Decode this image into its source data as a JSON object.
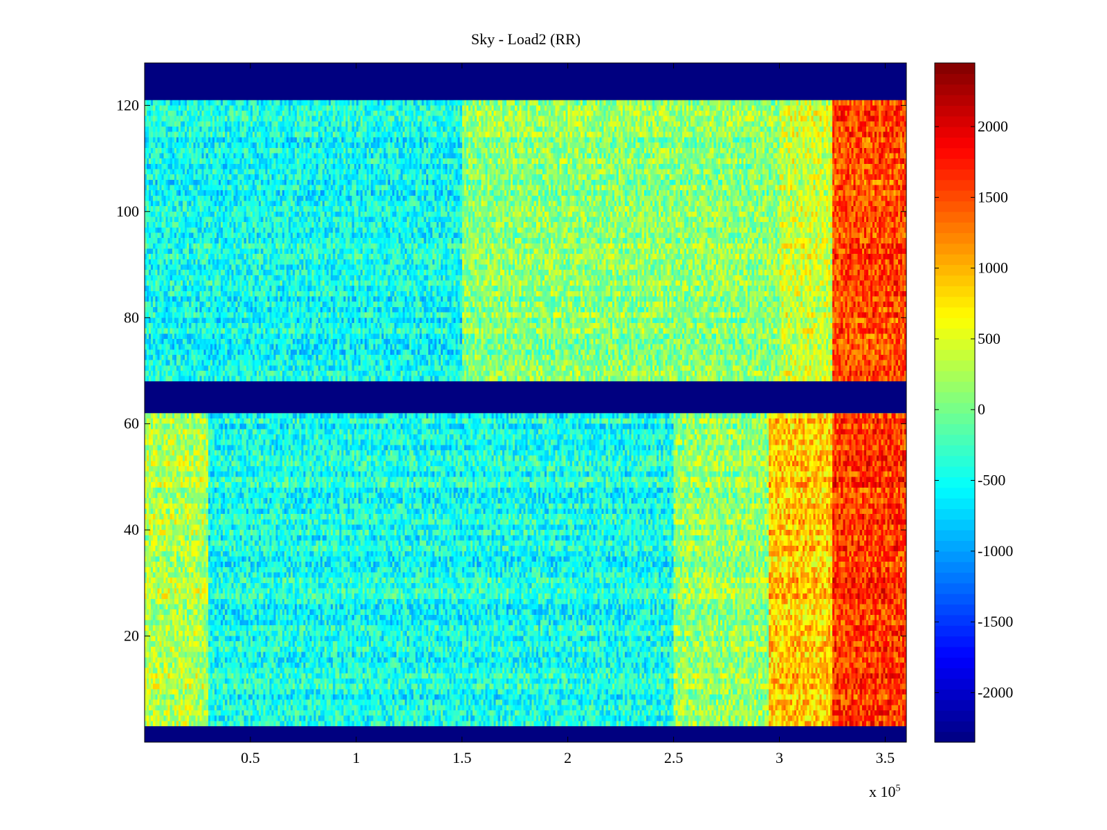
{
  "chart_data": {
    "type": "heatmap",
    "title": "Sky - Load2 (RR)",
    "xlabel": "",
    "ylabel": "",
    "x_range": [
      0,
      360000
    ],
    "y_range": [
      0,
      128
    ],
    "x_ticks": [
      50000,
      100000,
      150000,
      200000,
      250000,
      300000,
      350000
    ],
    "x_tick_labels": [
      "0.5",
      "1",
      "1.5",
      "2",
      "2.5",
      "3",
      "3.5"
    ],
    "x_multiplier_label": "x 10",
    "x_multiplier_exponent": "5",
    "y_ticks": [
      20,
      40,
      60,
      80,
      100,
      120
    ],
    "y_tick_labels": [
      "20",
      "40",
      "60",
      "80",
      "100",
      "120"
    ],
    "masked_rows": [
      [
        0,
        3
      ],
      [
        62,
        68
      ],
      [
        121,
        128
      ]
    ],
    "colormap": "jet",
    "clim": [
      -2350,
      2450
    ],
    "colorbar_ticks": [
      2000,
      1500,
      1000,
      500,
      0,
      -500,
      -1000,
      -1500,
      -2000
    ],
    "colorbar_tick_labels": [
      "2000",
      "1500",
      "1000",
      "500",
      "0",
      "-500",
      "-1000",
      "-1500",
      "-2000"
    ],
    "grid": false,
    "regions": [
      {
        "y": [
          68,
          121
        ],
        "x": [
          0,
          150000
        ],
        "mean": -500
      },
      {
        "y": [
          68,
          121
        ],
        "x": [
          150000,
          300000
        ],
        "mean": 100
      },
      {
        "y": [
          68,
          121
        ],
        "x": [
          300000,
          325000
        ],
        "mean": 400
      },
      {
        "y": [
          68,
          121
        ],
        "x": [
          325000,
          360000
        ],
        "mean": 1500
      },
      {
        "y": [
          3,
          62
        ],
        "x": [
          0,
          30000
        ],
        "mean": 300
      },
      {
        "y": [
          3,
          62
        ],
        "x": [
          30000,
          250000
        ],
        "mean": -450
      },
      {
        "y": [
          3,
          62
        ],
        "x": [
          250000,
          295000
        ],
        "mean": 150
      },
      {
        "y": [
          3,
          62
        ],
        "x": [
          295000,
          325000
        ],
        "mean": 900
      },
      {
        "y": [
          3,
          62
        ],
        "x": [
          325000,
          360000
        ],
        "mean": 1600
      }
    ]
  }
}
